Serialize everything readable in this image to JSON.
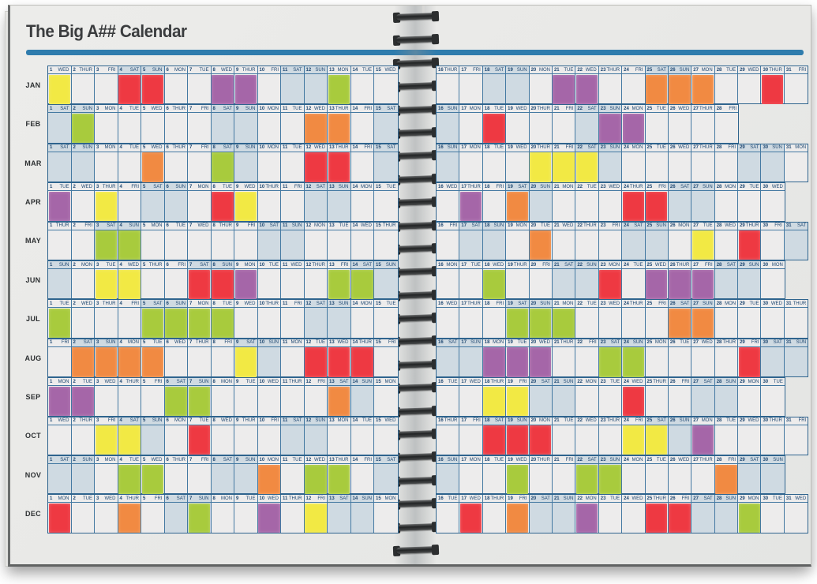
{
  "title": "The Big A## Calendar",
  "accent_bar_color": "#2f7cad",
  "grid_border_color": "#4479a2",
  "weekend_bg": "#cfdae2",
  "weekday_bg": "#edecec",
  "week_cycle": [
    "SUN",
    "MON",
    "TUE",
    "WED",
    "THUR",
    "FRI",
    "SAT"
  ],
  "split_after_day": 15,
  "palette": {
    "red": "#ee3942",
    "orange": "#f18a42",
    "yellow": "#f2e944",
    "green": "#a8cb3d",
    "purple": "#a566a8"
  },
  "months": [
    {
      "label": "JAN",
      "num_days": 31,
      "start_weekday": "WED",
      "events": {
        "1": "yellow",
        "4": "red",
        "5": "red",
        "8": "purple",
        "9": "purple",
        "13": "green",
        "21": "purple",
        "22": "purple",
        "25": "orange",
        "26": "orange",
        "27": "orange",
        "30": "red"
      }
    },
    {
      "label": "FEB",
      "num_days": 28,
      "start_weekday": "SAT",
      "events": {
        "2": "green",
        "12": "orange",
        "13": "orange",
        "18": "red",
        "23": "purple",
        "24": "purple"
      }
    },
    {
      "label": "MAR",
      "num_days": 31,
      "start_weekday": "SAT",
      "events": {
        "5": "orange",
        "8": "green",
        "12": "red",
        "13": "red",
        "20": "yellow",
        "21": "yellow",
        "22": "yellow"
      }
    },
    {
      "label": "APR",
      "num_days": 30,
      "start_weekday": "TUE",
      "events": {
        "1": "purple",
        "3": "yellow",
        "8": "red",
        "9": "yellow",
        "17": "purple",
        "19": "orange",
        "24": "red",
        "25": "red"
      }
    },
    {
      "label": "MAY",
      "num_days": 31,
      "start_weekday": "THUR",
      "events": {
        "3": "green",
        "4": "green",
        "20": "orange",
        "27": "yellow",
        "29": "red"
      }
    },
    {
      "label": "JUN",
      "num_days": 30,
      "start_weekday": "SUN",
      "events": {
        "3": "yellow",
        "4": "yellow",
        "7": "red",
        "8": "red",
        "9": "purple",
        "13": "green",
        "14": "green",
        "18": "green",
        "23": "red",
        "25": "purple",
        "26": "purple",
        "27": "purple"
      }
    },
    {
      "label": "JUL",
      "num_days": 31,
      "start_weekday": "TUE",
      "events": {
        "1": "green",
        "5": "green",
        "6": "green",
        "7": "green",
        "8": "green",
        "19": "green",
        "20": "green",
        "21": "green",
        "26": "orange",
        "27": "orange"
      }
    },
    {
      "label": "AUG",
      "num_days": 31,
      "start_weekday": "FRI",
      "events": {
        "2": "orange",
        "3": "orange",
        "4": "orange",
        "5": "orange",
        "9": "yellow",
        "12": "red",
        "13": "red",
        "14": "red",
        "18": "purple",
        "19": "purple",
        "20": "purple",
        "23": "green",
        "24": "green",
        "29": "red"
      }
    },
    {
      "label": "SEP",
      "num_days": 30,
      "start_weekday": "MON",
      "events": {
        "1": "purple",
        "2": "purple",
        "6": "green",
        "7": "green",
        "13": "orange",
        "18": "yellow",
        "19": "yellow",
        "24": "red"
      }
    },
    {
      "label": "OCT",
      "num_days": 31,
      "start_weekday": "WED",
      "events": {
        "3": "yellow",
        "4": "yellow",
        "7": "red",
        "18": "red",
        "19": "red",
        "20": "red",
        "24": "yellow",
        "25": "yellow",
        "27": "purple"
      }
    },
    {
      "label": "NOV",
      "num_days": 30,
      "start_weekday": "SAT",
      "events": {
        "4": "green",
        "5": "green",
        "10": "orange",
        "12": "green",
        "13": "green",
        "19": "green",
        "22": "green",
        "23": "green",
        "28": "orange"
      }
    },
    {
      "label": "DEC",
      "num_days": 31,
      "start_weekday": "MON",
      "events": {
        "1": "red",
        "4": "orange",
        "7": "green",
        "10": "purple",
        "12": "yellow",
        "17": "red",
        "19": "orange",
        "22": "purple",
        "25": "red",
        "26": "red",
        "29": "green"
      }
    }
  ]
}
